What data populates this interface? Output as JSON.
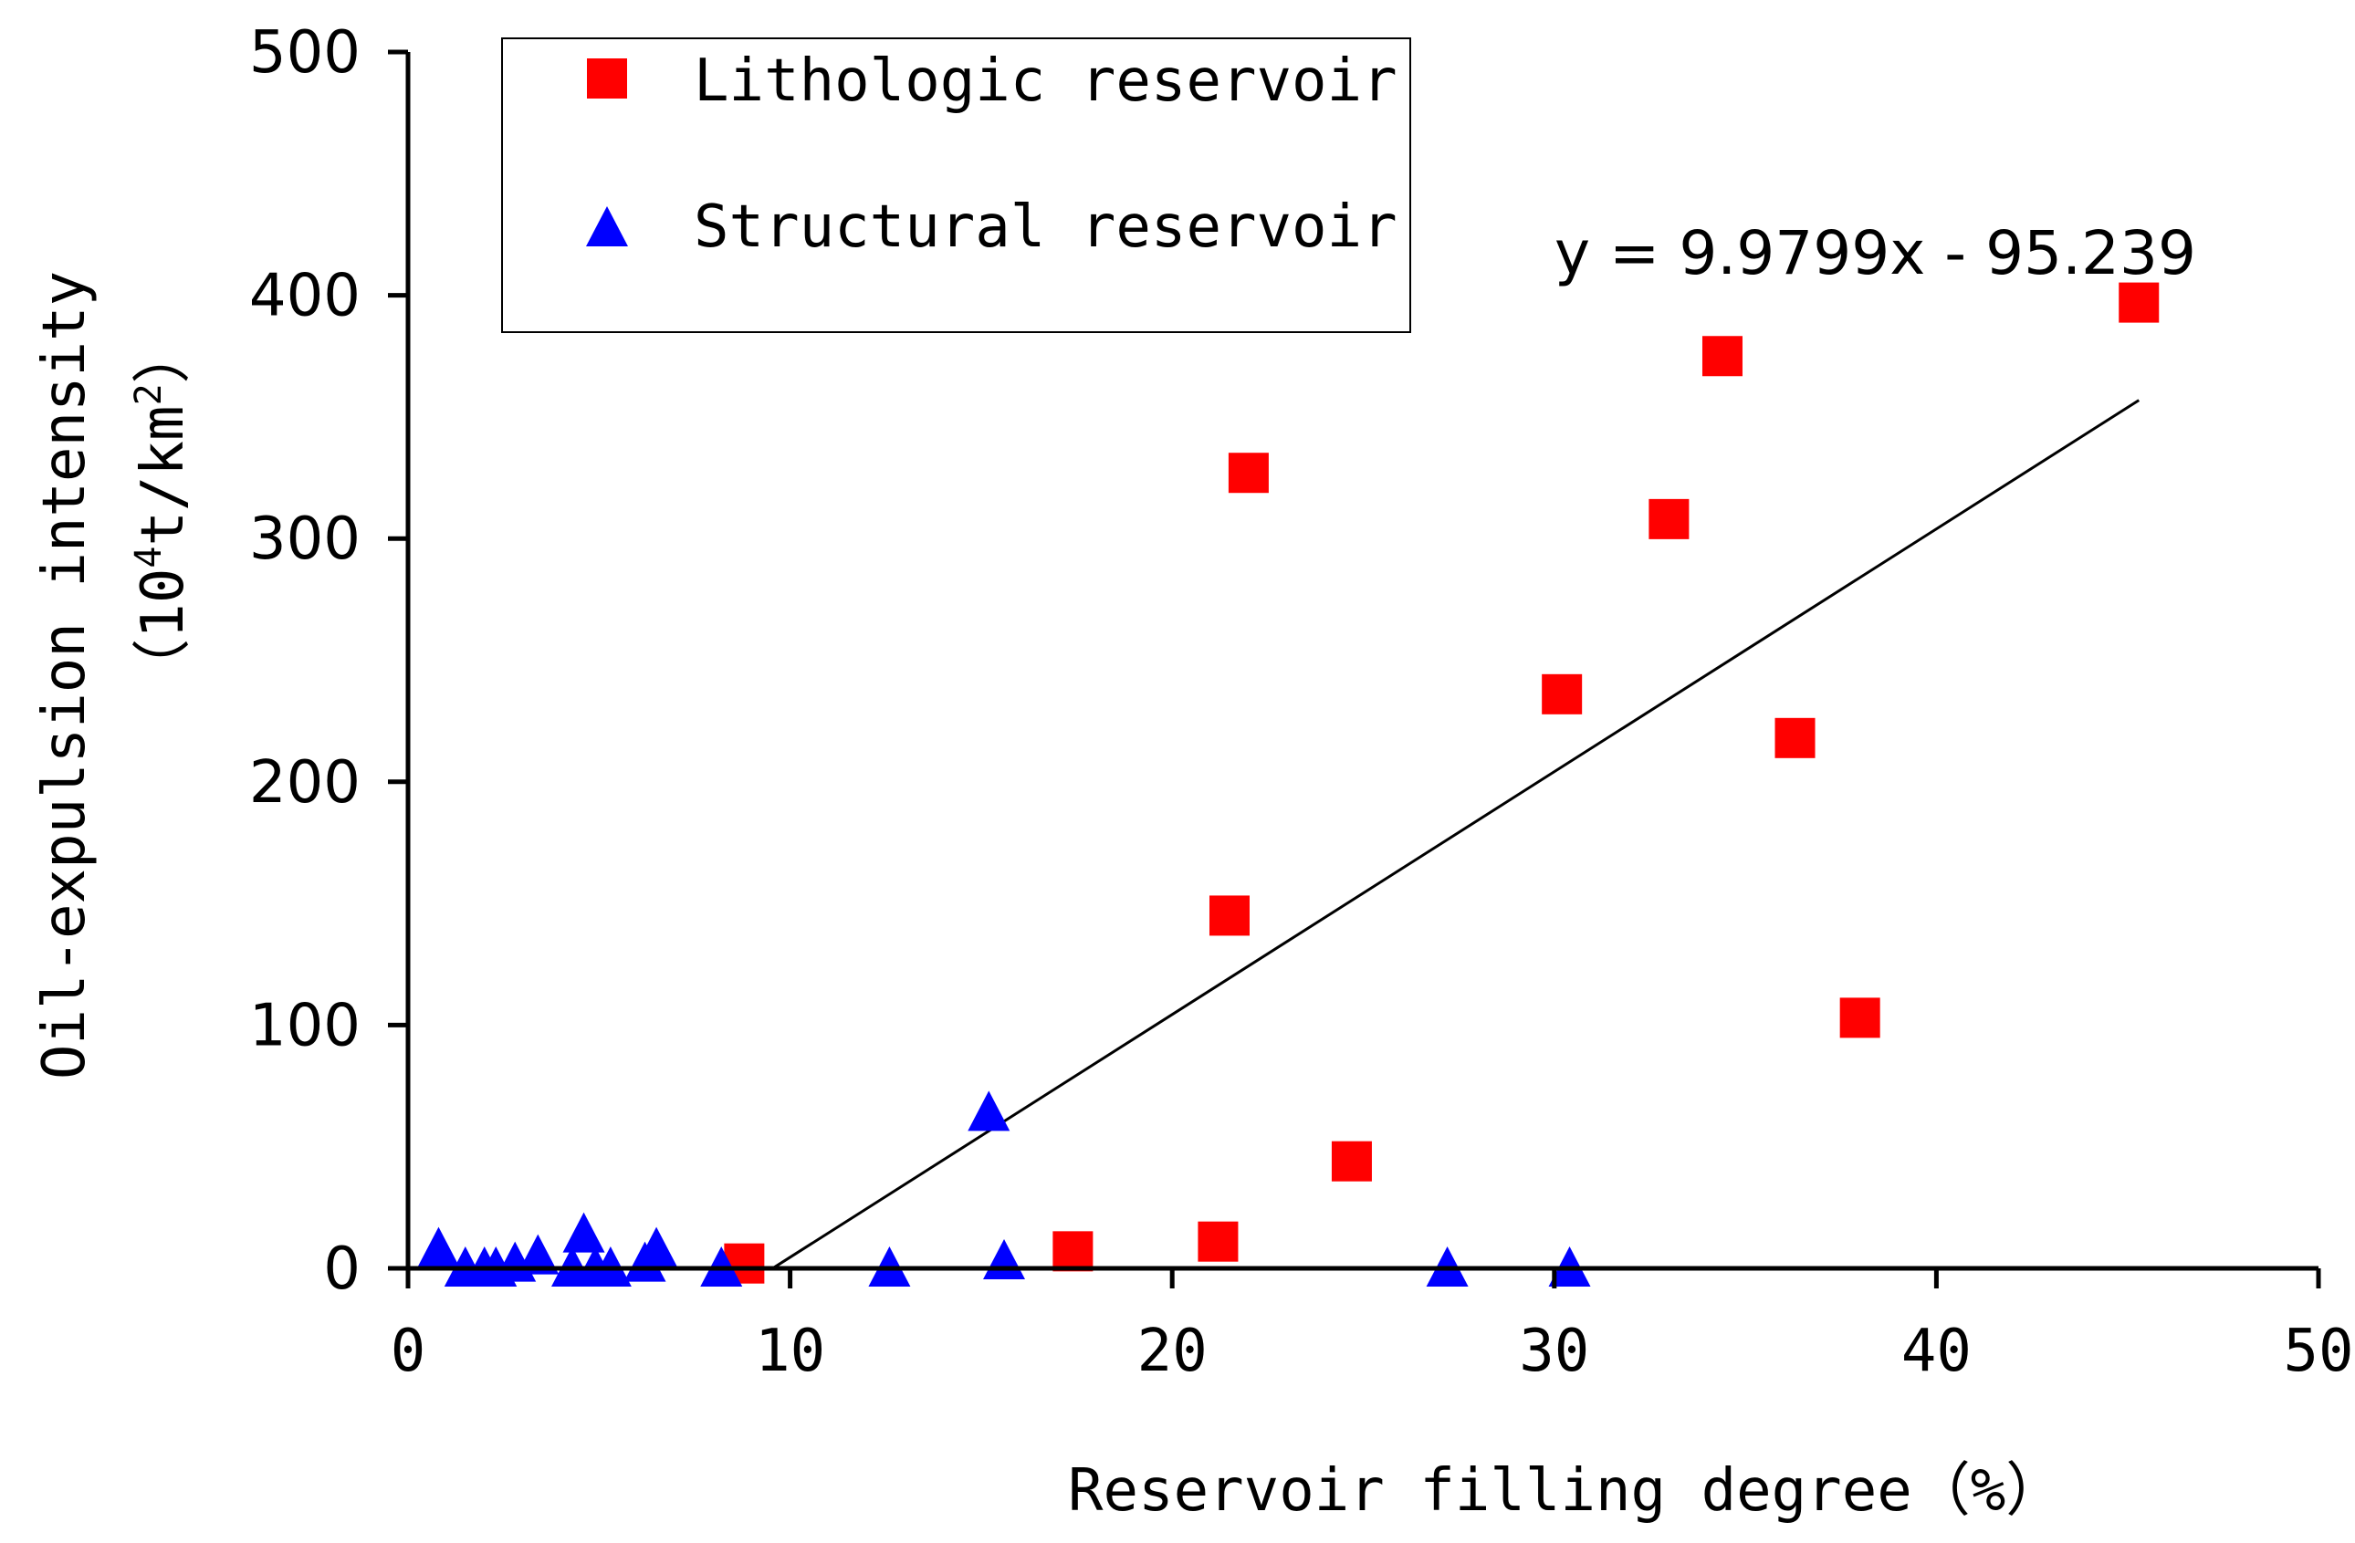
{
  "chart_data": {
    "type": "scatter",
    "xlabel": "Reservoir filling degree（%）",
    "ylabel_line1": "Oil-expulsion intensity",
    "ylabel_line2_prefix": "（10",
    "ylabel_line2_sup": "4",
    "ylabel_line2_mid": "t/km",
    "ylabel_line2_sup2": "2",
    "ylabel_line2_suffix": "）",
    "xlim": [
      0,
      50
    ],
    "ylim": [
      0,
      500
    ],
    "x_ticks": [
      "0",
      "10",
      "20",
      "30",
      "40",
      "50"
    ],
    "y_ticks": [
      "0",
      "100",
      "200",
      "300",
      "400",
      "500"
    ],
    "legend": {
      "position": "top-left",
      "lithologic_label": "Lithologic reservoir",
      "structural_label": "Structural reservoir"
    },
    "trendline": {
      "equation": "y = 9.9799x - 95.239",
      "slope": 9.9799,
      "intercept": -95.239,
      "x_range": [
        9.55,
        45.3
      ]
    },
    "colors": {
      "lithologic": "#ff0000",
      "structural": "#0000ff",
      "axis": "#000000"
    },
    "series": [
      {
        "name": "Lithologic reservoir",
        "marker": "square",
        "points": [
          [
            8.8,
            2
          ],
          [
            17.4,
            7
          ],
          [
            21.2,
            11
          ],
          [
            21.5,
            145
          ],
          [
            22.0,
            327
          ],
          [
            24.7,
            44
          ],
          [
            30.2,
            236
          ],
          [
            33.0,
            308
          ],
          [
            34.4,
            375
          ],
          [
            36.3,
            218
          ],
          [
            38.0,
            103
          ],
          [
            45.3,
            397
          ]
        ]
      },
      {
        "name": "Structural reservoir",
        "marker": "triangle",
        "points": [
          [
            0.8,
            8
          ],
          [
            1.5,
            0
          ],
          [
            2.0,
            0
          ],
          [
            2.3,
            0
          ],
          [
            2.8,
            2
          ],
          [
            3.4,
            5
          ],
          [
            4.3,
            0
          ],
          [
            4.6,
            14
          ],
          [
            4.9,
            0
          ],
          [
            5.3,
            0
          ],
          [
            6.2,
            2
          ],
          [
            6.5,
            8
          ],
          [
            8.2,
            0
          ],
          [
            12.6,
            0
          ],
          [
            15.2,
            64
          ],
          [
            15.6,
            3
          ],
          [
            27.2,
            0
          ],
          [
            30.4,
            0
          ]
        ]
      }
    ]
  }
}
